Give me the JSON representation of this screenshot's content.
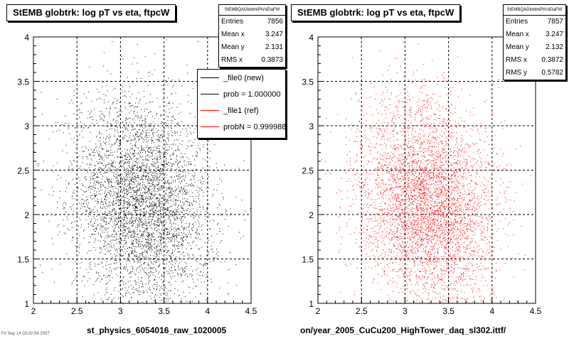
{
  "footer": {
    "timestamp": "Fri Sep 14 03:02:54 2007"
  },
  "chart_data": [
    {
      "type": "scatter",
      "title": "StEMB globtrk: log pT vs eta, ftpcW",
      "xlabel": "st_physics_6054016_raw_1020005",
      "ylabel": "",
      "xlim": [
        2,
        4.5
      ],
      "ylim": [
        1,
        4
      ],
      "x_ticks": [
        "2",
        "2.5",
        "3",
        "3.5",
        "4",
        "4.5"
      ],
      "y_ticks": [
        "1",
        "1.5",
        "2",
        "2.5",
        "3",
        "3.5",
        "4"
      ],
      "grid": true,
      "marker_color": "#000000",
      "distribution": {
        "n_points": 7856,
        "x_mean": 3.247,
        "y_mean": 2.131,
        "x_rms": 0.3873,
        "y_rms": 0.578
      },
      "stats": {
        "name": "StEMBQAGlobtrkPtVsEtaFW",
        "rows": [
          {
            "label": "Entries",
            "value": "7856"
          },
          {
            "label": "Mean x",
            "value": "3.247"
          },
          {
            "label": "Mean y",
            "value": "2.131"
          },
          {
            "label": "RMS x",
            "value": "0.3873"
          }
        ]
      },
      "legend": {
        "placement": "top-right",
        "entries": [
          {
            "label": "_file0 (new)",
            "color": "#000000"
          },
          {
            "label": "prob = 1.000000",
            "color": "#000000"
          },
          {
            "label": "_file1 (ref)",
            "color": "#ff0000"
          },
          {
            "label": "probN = 0.999988",
            "color": "#ff0000"
          }
        ]
      }
    },
    {
      "type": "scatter",
      "title": "StEMB globtrk: log pT vs eta, ftpcW",
      "xlabel": "on/year_2005_CuCu200_HighTower_daq_sl302.ittf/",
      "ylabel": "",
      "xlim": [
        2,
        4.5
      ],
      "ylim": [
        1,
        4
      ],
      "x_ticks": [
        "2",
        "2.5",
        "3",
        "3.5",
        "4",
        "4.5"
      ],
      "y_ticks": [
        "1",
        "1.5",
        "2",
        "2.5",
        "3",
        "3.5",
        "4"
      ],
      "grid": true,
      "marker_color": "#ff0000",
      "distribution": {
        "n_points": 7857,
        "x_mean": 3.247,
        "y_mean": 2.132,
        "x_rms": 0.3872,
        "y_rms": 0.5782
      },
      "stats": {
        "name": "StEMBQAGlobtrkPtVsEtaFW",
        "rows": [
          {
            "label": "Entries",
            "value": "7857"
          },
          {
            "label": "Mean x",
            "value": "3.247"
          },
          {
            "label": "Mean y",
            "value": "2.132"
          },
          {
            "label": "RMS x",
            "value": "0.3872"
          },
          {
            "label": "RMS y",
            "value": "0.5782"
          }
        ]
      }
    }
  ]
}
